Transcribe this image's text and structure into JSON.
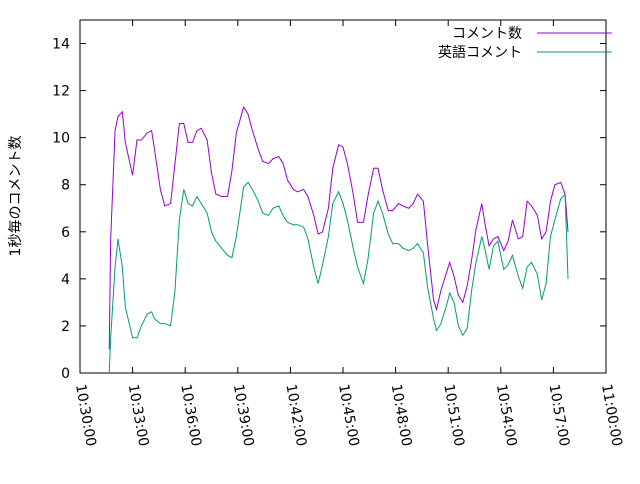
{
  "chart_data": {
    "type": "line",
    "y_label": "1秒毎のコメント数",
    "x": [
      "10:31:40",
      "10:31:45",
      "10:32:00",
      "10:32:10",
      "10:32:25",
      "10:32:35",
      "10:33:00",
      "10:33:15",
      "10:33:30",
      "10:33:50",
      "10:34:05",
      "10:34:15",
      "10:34:35",
      "10:34:50",
      "10:35:10",
      "10:35:25",
      "10:35:40",
      "10:35:55",
      "10:36:10",
      "10:36:25",
      "10:36:40",
      "10:36:55",
      "10:37:15",
      "10:37:30",
      "10:37:45",
      "10:38:05",
      "10:38:25",
      "10:38:40",
      "10:38:55",
      "10:39:20",
      "10:39:35",
      "10:39:50",
      "10:40:10",
      "10:40:25",
      "10:40:45",
      "10:41:00",
      "10:41:20",
      "10:41:35",
      "10:41:50",
      "10:42:10",
      "10:42:25",
      "10:42:45",
      "10:43:00",
      "10:43:20",
      "10:43:35",
      "10:43:50",
      "10:44:10",
      "10:44:25",
      "10:44:45",
      "10:45:00",
      "10:45:15",
      "10:45:35",
      "10:45:50",
      "10:46:10",
      "10:46:25",
      "10:46:45",
      "10:47:00",
      "10:47:15",
      "10:47:35",
      "10:47:50",
      "10:48:10",
      "10:48:25",
      "10:48:45",
      "10:49:00",
      "10:49:15",
      "10:49:35",
      "10:49:50",
      "10:50:10",
      "10:50:20",
      "10:50:35",
      "10:50:55",
      "10:51:05",
      "10:51:20",
      "10:51:35",
      "10:51:50",
      "10:52:05",
      "10:52:20",
      "10:52:35",
      "10:52:55",
      "10:53:05",
      "10:53:20",
      "10:53:35",
      "10:53:50",
      "10:54:10",
      "10:54:25",
      "10:54:40",
      "10:55:00",
      "10:55:15",
      "10:55:30",
      "10:55:45",
      "10:56:05",
      "10:56:20",
      "10:56:35",
      "10:56:50",
      "10:57:05",
      "10:57:25",
      "10:57:40",
      "10:57:50"
    ],
    "series": [
      {
        "name": "コメント数",
        "color": "#9400d3",
        "values": [
          1.0,
          5.7,
          10.3,
          10.9,
          11.1,
          9.8,
          8.4,
          9.9,
          9.9,
          10.2,
          10.3,
          9.5,
          7.8,
          7.1,
          7.2,
          8.9,
          10.6,
          10.6,
          9.8,
          9.8,
          10.3,
          10.4,
          9.9,
          8.5,
          7.6,
          7.5,
          7.5,
          8.6,
          10.2,
          11.3,
          11.0,
          10.3,
          9.5,
          9.0,
          8.9,
          9.1,
          9.2,
          8.9,
          8.2,
          7.8,
          7.7,
          7.8,
          7.5,
          6.7,
          5.9,
          6.0,
          7.0,
          8.7,
          9.7,
          9.6,
          8.9,
          7.6,
          6.4,
          6.4,
          7.5,
          8.7,
          8.7,
          7.8,
          6.9,
          6.9,
          7.2,
          7.1,
          7.0,
          7.2,
          7.6,
          7.3,
          5.4,
          3.1,
          2.7,
          3.5,
          4.3,
          4.7,
          4.1,
          3.3,
          3.0,
          3.7,
          4.8,
          6.1,
          7.2,
          6.4,
          5.4,
          5.7,
          5.8,
          5.2,
          5.6,
          6.5,
          5.7,
          5.8,
          7.3,
          7.1,
          6.7,
          5.7,
          6.0,
          7.3,
          8.0,
          8.1,
          7.6,
          6.0
        ]
      },
      {
        "name": "英語コメント",
        "color": "#009e73",
        "values": [
          0,
          1.5,
          4.5,
          5.7,
          4.5,
          2.8,
          1.5,
          1.5,
          2.0,
          2.5,
          2.6,
          2.3,
          2.1,
          2.1,
          2.0,
          3.5,
          6.5,
          7.8,
          7.2,
          7.1,
          7.5,
          7.2,
          6.8,
          6.0,
          5.6,
          5.3,
          5.0,
          4.9,
          5.8,
          7.9,
          8.1,
          7.8,
          7.3,
          6.8,
          6.7,
          7.0,
          7.1,
          6.7,
          6.4,
          6.3,
          6.3,
          6.2,
          5.7,
          4.5,
          3.8,
          4.6,
          5.8,
          7.2,
          7.7,
          7.2,
          6.5,
          5.3,
          4.5,
          3.8,
          4.8,
          6.8,
          7.3,
          6.8,
          5.9,
          5.5,
          5.5,
          5.3,
          5.2,
          5.3,
          5.5,
          5.1,
          3.6,
          2.3,
          1.8,
          2.1,
          2.9,
          3.4,
          3.0,
          2.0,
          1.6,
          1.9,
          3.5,
          4.7,
          5.8,
          5.3,
          4.4,
          5.4,
          5.6,
          4.4,
          4.6,
          5.0,
          4.1,
          3.6,
          4.5,
          4.7,
          4.2,
          3.1,
          3.8,
          5.8,
          6.5,
          7.4,
          7.6,
          4.0
        ]
      }
    ],
    "xlim": [
      "10:30:00",
      "11:00:00"
    ],
    "xticks": [
      "10:30:00",
      "10:33:00",
      "10:36:00",
      "10:39:00",
      "10:42:00",
      "10:45:00",
      "10:48:00",
      "10:51:00",
      "10:54:00",
      "10:57:00",
      "11:00:00"
    ],
    "ylim": [
      0,
      15
    ],
    "yticks": [
      0,
      2,
      4,
      6,
      8,
      10,
      12,
      14
    ],
    "legend": "top-right"
  }
}
